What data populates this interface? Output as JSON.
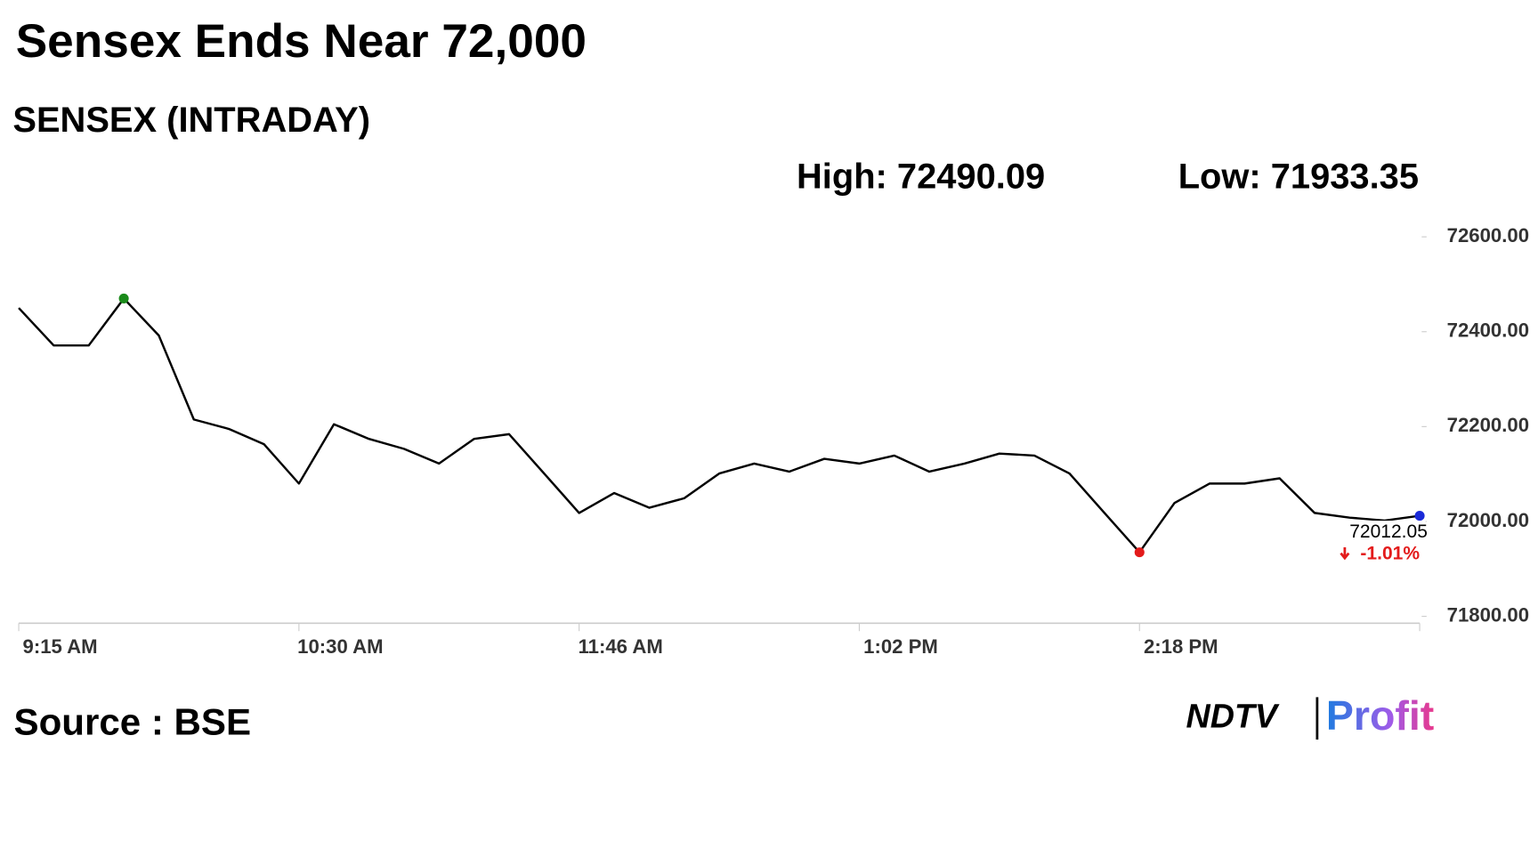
{
  "chart_data": {
    "type": "line",
    "title": "Sensex Ends Near 72,000",
    "subtitle": "SENSEX (INTRADAY)",
    "high_label": "High: 72490.09",
    "low_label": "Low: 71933.35",
    "last_label": "72012.05",
    "change_label": "-1.01%",
    "categories": [
      "9:15 AM",
      null,
      null,
      null,
      null,
      null,
      null,
      null,
      "10:30 AM",
      null,
      null,
      null,
      null,
      null,
      null,
      null,
      "11:46 AM",
      null,
      null,
      null,
      null,
      null,
      null,
      null,
      "1:02 PM",
      null,
      null,
      null,
      null,
      null,
      null,
      null,
      "2:18 PM",
      null,
      null,
      null,
      null,
      null,
      null,
      null,
      null
    ],
    "series": [
      {
        "name": "SENSEX",
        "color": "#000000",
        "values": [
          72450,
          72371,
          72371,
          72470,
          72392,
          72215,
          72195,
          72163,
          72080,
          72205,
          72174,
          72153,
          72122,
          72174,
          72184,
          72101,
          72018,
          72060,
          72029,
          72049,
          72101,
          72122,
          72105,
          72132,
          72122,
          72139,
          72105,
          72122,
          72143,
          72139,
          72101,
          72018,
          71935,
          72039,
          72080,
          72080,
          72091,
          72018,
          72008,
          72002,
          72012
        ]
      }
    ],
    "ylim": [
      71800,
      72600
    ],
    "yticks": [
      {
        "value": 71800,
        "label": "71800.00"
      },
      {
        "value": 72000,
        "label": "72000.00"
      },
      {
        "value": 72200,
        "label": "72200.00"
      },
      {
        "value": 72400,
        "label": "72400.00"
      },
      {
        "value": 72600,
        "label": "72600.00"
      }
    ],
    "grid": false
  },
  "source": "Source : BSE",
  "logo": {
    "brand": "NDTV",
    "product": "Profit"
  }
}
